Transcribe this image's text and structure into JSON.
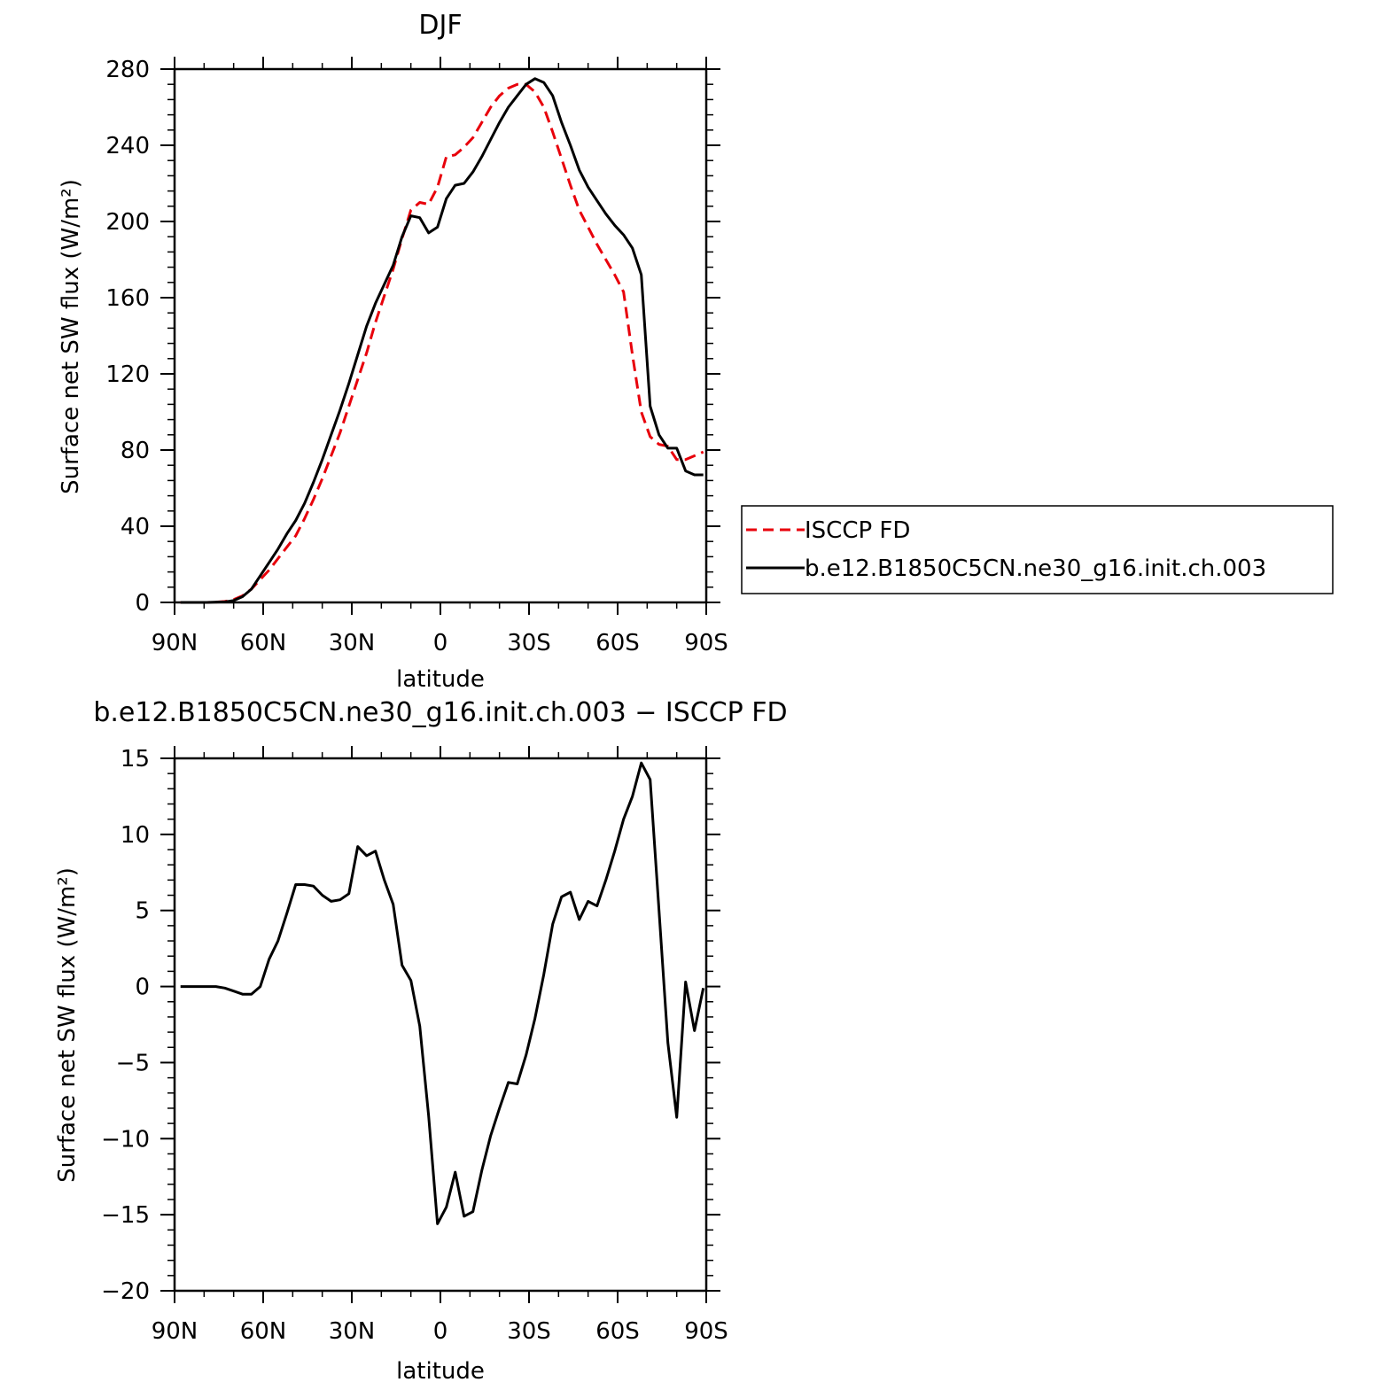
{
  "chart_data": [
    {
      "type": "line",
      "title": "DJF",
      "xlabel": "latitude",
      "ylabel": "Surface net SW flux (W/m²)",
      "ylim": [
        0,
        280
      ],
      "xlim": [
        -90,
        90
      ],
      "x_ticks": [
        {
          "value": -90,
          "label": "90N"
        },
        {
          "value": -60,
          "label": "60N"
        },
        {
          "value": -30,
          "label": "30N"
        },
        {
          "value": 0,
          "label": "0"
        },
        {
          "value": 30,
          "label": "30S"
        },
        {
          "value": 60,
          "label": "60S"
        },
        {
          "value": 90,
          "label": "90S"
        }
      ],
      "y_ticks": [
        0,
        40,
        80,
        120,
        160,
        200,
        240,
        280
      ],
      "legend_position": "right",
      "series": [
        {
          "name": "ISCCP FD",
          "color": "#e8000b",
          "dash": "dashed",
          "x": [
            -88,
            -85,
            -82,
            -79,
            -76,
            -73,
            -70,
            -67,
            -64,
            -61,
            -58,
            -55,
            -52,
            -49,
            -46,
            -43,
            -40,
            -37,
            -34,
            -31,
            -28,
            -25,
            -22,
            -19,
            -16,
            -13,
            -10,
            -7,
            -4,
            -1,
            2,
            5,
            8,
            11,
            14,
            17,
            20,
            23,
            26,
            29,
            32,
            35,
            38,
            41,
            44,
            47,
            50,
            53,
            56,
            59,
            62,
            65,
            68,
            71,
            74,
            77,
            80,
            83,
            86,
            89
          ],
          "y": [
            0,
            0,
            0,
            0,
            0.2,
            0.5,
            1.5,
            3.5,
            7,
            12,
            17,
            23,
            29,
            35,
            44,
            54,
            65,
            77,
            89,
            103,
            117,
            131,
            147,
            161,
            175,
            191,
            206,
            210,
            209,
            218,
            234,
            235,
            239,
            244,
            252,
            260,
            266,
            270,
            272,
            272,
            268,
            260,
            247,
            233,
            219,
            206,
            197,
            188,
            180,
            172,
            163,
            130,
            100,
            87,
            83,
            82,
            75,
            75,
            77,
            79
          ]
        },
        {
          "name": "b.e12.B1850C5CN.ne30_g16.init.ch.003",
          "color": "#000000",
          "dash": "solid",
          "x": [
            -88,
            -85,
            -82,
            -79,
            -76,
            -73,
            -70,
            -67,
            -64,
            -61,
            -58,
            -55,
            -52,
            -49,
            -46,
            -43,
            -40,
            -37,
            -34,
            -31,
            -28,
            -25,
            -22,
            -19,
            -16,
            -13,
            -10,
            -7,
            -4,
            -1,
            2,
            5,
            8,
            11,
            14,
            17,
            20,
            23,
            26,
            29,
            32,
            35,
            38,
            41,
            44,
            47,
            50,
            53,
            56,
            59,
            62,
            65,
            68,
            71,
            74,
            77,
            80,
            83,
            86,
            89
          ],
          "y": [
            0,
            0,
            0,
            0,
            0.2,
            0.3,
            1,
            3,
            7,
            14,
            21,
            28,
            36,
            43,
            52,
            63,
            75,
            88,
            101,
            115,
            130,
            145,
            157,
            167,
            177,
            192,
            203,
            202,
            194,
            197,
            212,
            219,
            220,
            226,
            234,
            243,
            252,
            260,
            266,
            272,
            275,
            273,
            266,
            252,
            240,
            227,
            218,
            211,
            204,
            198,
            193,
            186,
            172,
            103,
            88,
            81,
            81,
            69,
            67,
            67
          ]
        }
      ]
    },
    {
      "type": "line",
      "title": "b.e12.B1850C5CN.ne30_g16.init.ch.003 − ISCCP FD",
      "xlabel": "latitude",
      "ylabel": "Surface net SW flux (W/m²)",
      "ylim": [
        -20,
        15
      ],
      "xlim": [
        -90,
        90
      ],
      "x_ticks": [
        {
          "value": -90,
          "label": "90N"
        },
        {
          "value": -60,
          "label": "60N"
        },
        {
          "value": -30,
          "label": "30N"
        },
        {
          "value": 0,
          "label": "0"
        },
        {
          "value": 30,
          "label": "30S"
        },
        {
          "value": 60,
          "label": "60S"
        },
        {
          "value": 90,
          "label": "90S"
        }
      ],
      "y_ticks": [
        -20,
        -15,
        -10,
        -5,
        0,
        5,
        10,
        15
      ],
      "series": [
        {
          "color": "#000000",
          "dash": "solid",
          "x": [
            -88,
            -85,
            -82,
            -79,
            -76,
            -73,
            -70,
            -67,
            -64,
            -61,
            -58,
            -55,
            -52,
            -49,
            -46,
            -43,
            -40,
            -37,
            -34,
            -31,
            -28,
            -25,
            -22,
            -19,
            -16,
            -13,
            -10,
            -7,
            -4,
            -1,
            2,
            5,
            8,
            11,
            14,
            17,
            20,
            23,
            26,
            29,
            32,
            35,
            38,
            41,
            44,
            47,
            50,
            53,
            56,
            59,
            62,
            65,
            68,
            71,
            74,
            77,
            80,
            83,
            86,
            89
          ],
          "y": [
            0,
            0,
            0,
            0,
            0,
            -0.1,
            -0.3,
            -0.5,
            -0.5,
            0,
            1.8,
            3,
            4.8,
            6.7,
            6.7,
            6.6,
            6,
            5.6,
            5.7,
            6.1,
            9.2,
            8.6,
            8.9,
            7,
            5.4,
            1.4,
            0.4,
            -2.6,
            -8.5,
            -15.6,
            -14.5,
            -12.2,
            -15.1,
            -14.8,
            -12.1,
            -9.8,
            -8,
            -6.3,
            -6.4,
            -4.5,
            -2.1,
            0.8,
            4.1,
            5.9,
            6.2,
            4.4,
            5.6,
            5.3,
            7,
            8.9,
            11.0,
            12.5,
            14.7,
            13.6,
            5,
            -3.7,
            -8.6,
            0.3,
            -2.9,
            -0.1
          ]
        }
      ]
    }
  ]
}
